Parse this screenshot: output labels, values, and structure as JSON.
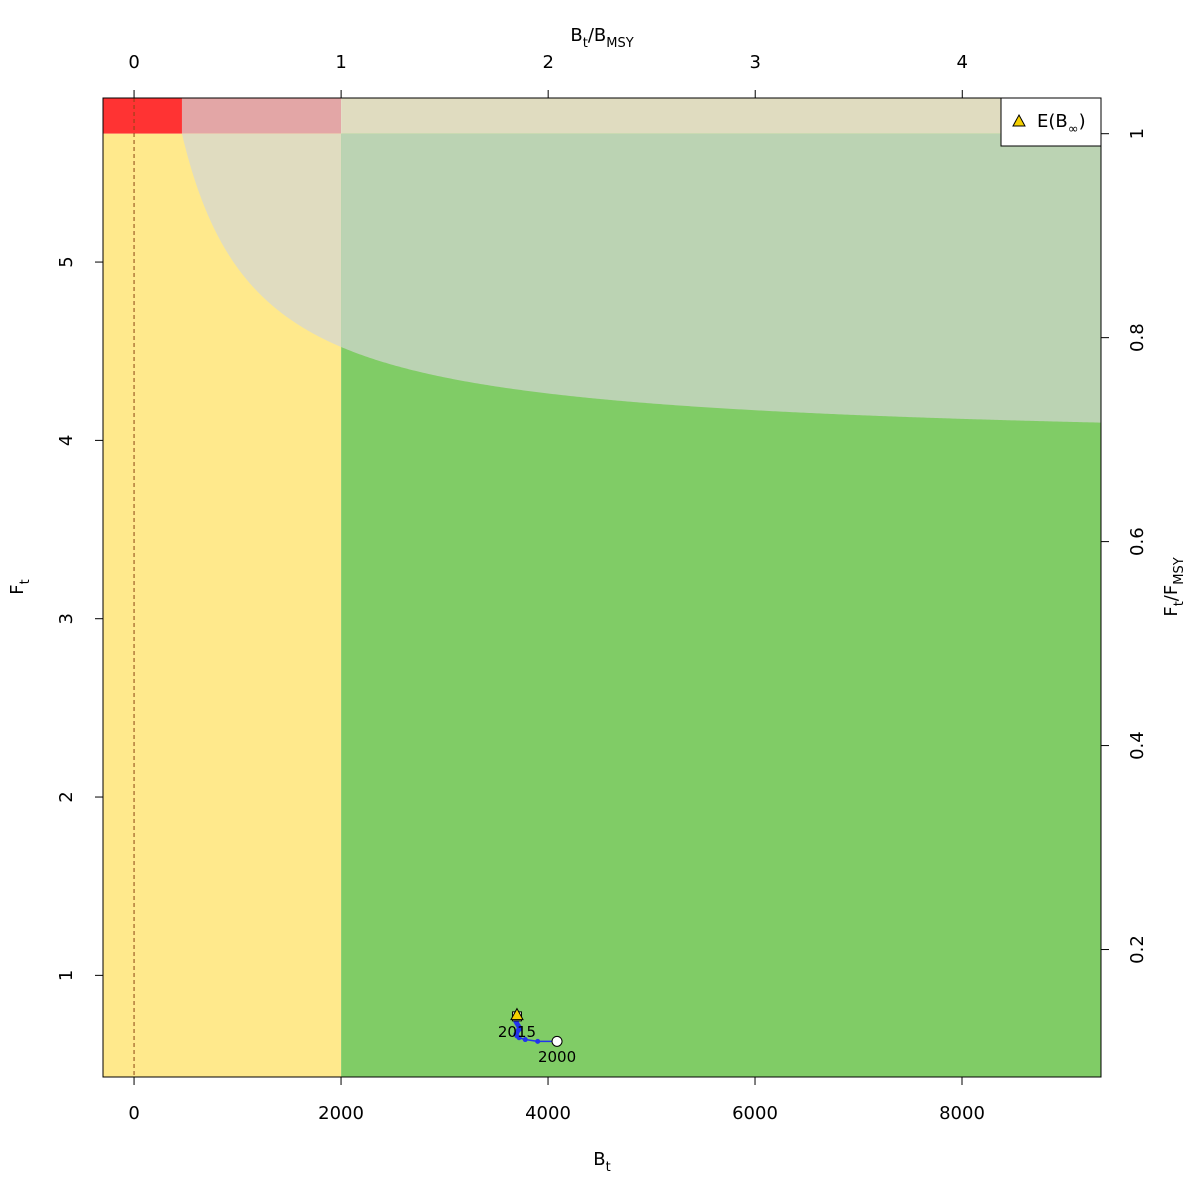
{
  "chart_data": {
    "type": "kobe",
    "xlabel": [
      "B",
      "t"
    ],
    "ylabel": [
      "F",
      "t"
    ],
    "x2label": [
      "B",
      "t",
      "/B",
      "MSY"
    ],
    "y2label": [
      "F",
      "t",
      "/F",
      "MSY"
    ],
    "xlim": [
      -300,
      9343
    ],
    "xticks": [
      {
        "value": 0,
        "label": "0"
      },
      {
        "value": 2000,
        "label": "2000"
      },
      {
        "value": 4000,
        "label": "4000"
      },
      {
        "value": 6000,
        "label": "6000"
      },
      {
        "value": 8000,
        "label": "8000"
      }
    ],
    "ylim": [
      0.43,
      5.92
    ],
    "yticks": [
      1,
      2,
      3,
      4,
      5
    ],
    "x2lim": [
      -0.15,
      4.67
    ],
    "x2ticks": [
      0,
      1,
      2,
      3,
      4
    ],
    "y2lim": [
      0.075,
      1.035
    ],
    "y2ticks": [
      0.2,
      0.4,
      0.6,
      0.8,
      1
    ],
    "series": [
      {
        "name": null,
        "color": "#2233ee",
        "x": [
          4087,
          3900,
          3780,
          3720,
          3700,
          3690,
          3700,
          3710,
          3720,
          3730,
          3720,
          3710,
          3700,
          3690,
          3700,
          3700
        ],
        "values": [
          0.63,
          0.63,
          0.64,
          0.65,
          0.66,
          0.67,
          0.68,
          0.69,
          0.7,
          0.7,
          0.71,
          0.72,
          0.73,
          0.74,
          0.75,
          0.77
        ],
        "labels": [
          "2000",
          null,
          null,
          null,
          null,
          null,
          null,
          null,
          null,
          null,
          null,
          null,
          null,
          null,
          null,
          "2015"
        ]
      }
    ],
    "expected": {
      "name": [
        "E(B",
        "∞",
        ")"
      ],
      "color": "#f5d000",
      "x": 3700,
      "y": 0.78
    },
    "legend": "top-right"
  }
}
